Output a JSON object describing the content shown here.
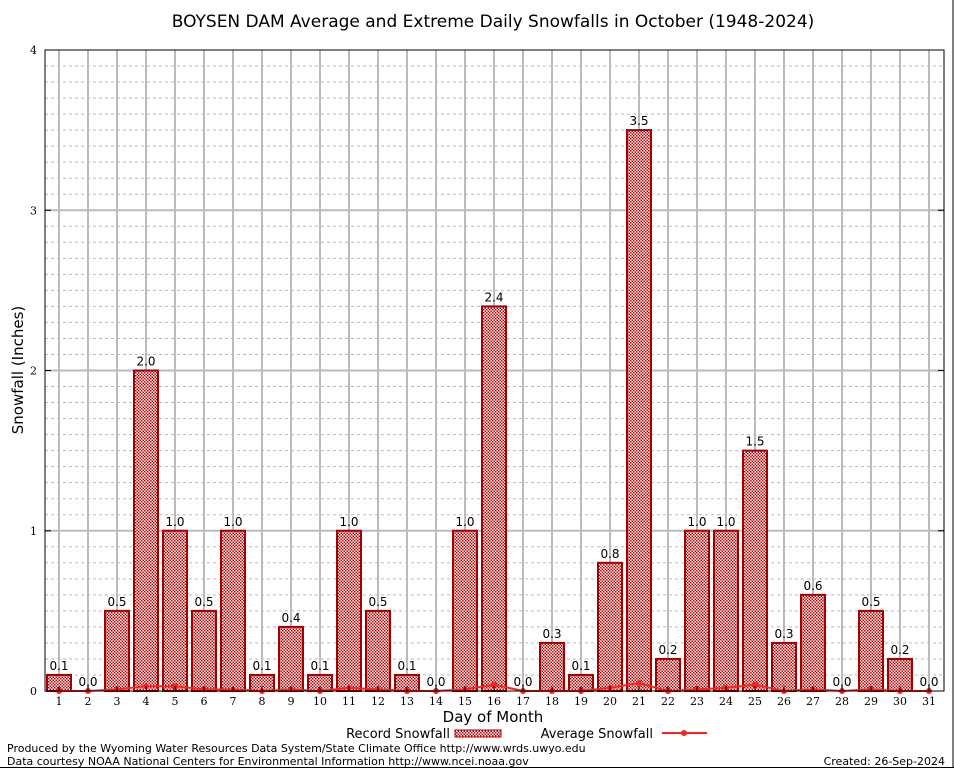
{
  "chart_data": {
    "type": "bar",
    "title": "BOYSEN DAM Average and Extreme Daily Snowfalls in October (1948-2024)",
    "xlabel": "Day of Month",
    "ylabel": "Snowfall (Inches)",
    "ylim": [
      0,
      4
    ],
    "yticks": [
      "0",
      "1",
      "2",
      "3",
      "4"
    ],
    "grid": true,
    "legend_placement": "bottom-center",
    "categories": [
      "1",
      "2",
      "3",
      "4",
      "5",
      "6",
      "7",
      "8",
      "9",
      "10",
      "11",
      "12",
      "13",
      "14",
      "15",
      "16",
      "17",
      "18",
      "19",
      "20",
      "21",
      "22",
      "23",
      "24",
      "25",
      "26",
      "27",
      "28",
      "29",
      "30",
      "31"
    ],
    "series": [
      {
        "name": "Record Snowfall",
        "type": "bar",
        "color": "#a00000",
        "values": [
          0.1,
          0.0,
          0.5,
          2.0,
          1.0,
          0.5,
          1.0,
          0.1,
          0.4,
          0.1,
          1.0,
          0.5,
          0.1,
          0.0,
          1.0,
          2.4,
          0.0,
          0.3,
          0.1,
          0.8,
          3.5,
          0.2,
          1.0,
          1.0,
          1.5,
          0.3,
          0.6,
          0.0,
          0.5,
          0.2,
          0.0
        ],
        "labels": [
          "0.1",
          "0.0",
          "0.5",
          "2.0",
          "1.0",
          "0.5",
          "1.0",
          "0.1",
          "0.4",
          "0.1",
          "1.0",
          "0.5",
          "0.1",
          "0.0",
          "1.0",
          "2.4",
          "0.0",
          "0.3",
          "0.1",
          "0.8",
          "3.5",
          "0.2",
          "1.0",
          "1.0",
          "1.5",
          "0.3",
          "0.6",
          "0.0",
          "0.5",
          "0.2",
          "0.0"
        ]
      },
      {
        "name": "Average Snowfall",
        "type": "line",
        "color": "#ff2020",
        "values": [
          0,
          0,
          0.01,
          0.03,
          0.03,
          0.01,
          0.01,
          0,
          0.01,
          0,
          0.02,
          0.01,
          0,
          0,
          0.01,
          0.04,
          0,
          0,
          0,
          0.02,
          0.05,
          0,
          0.01,
          0.02,
          0.04,
          0,
          0.01,
          0,
          0.01,
          0,
          0
        ]
      }
    ]
  },
  "footer": {
    "line1": "Produced by the Wyoming Water Resources Data System/State Climate Office http://www.wrds.uwyo.edu",
    "line2": "Data courtesy NOAA National Centers for Environmental Information http://www.ncei.noaa.gov",
    "created": "Created: 26-Sep-2024"
  }
}
